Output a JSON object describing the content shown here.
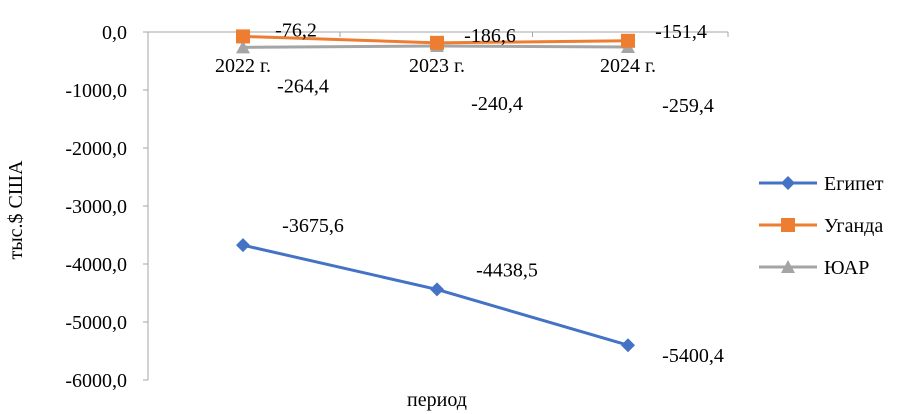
{
  "chart_data": {
    "type": "line",
    "title": "",
    "xlabel": "период",
    "ylabel": "тыс.$ США",
    "categories": [
      "2022 г.",
      "2023 г.",
      "2024 г."
    ],
    "ylim": [
      -6000,
      0
    ],
    "yticks": [
      0,
      -1000,
      -2000,
      -3000,
      -4000,
      -5000,
      -6000
    ],
    "ytick_labels": [
      "0,0",
      "-1000,0",
      "-2000,0",
      "-3000,0",
      "-4000,0",
      "-5000,0",
      "-6000,0"
    ],
    "grid": false,
    "legend_position": "right",
    "series": [
      {
        "name": "Египет",
        "values": [
          -3675.6,
          -4438.5,
          -5400.4
        ],
        "labels": [
          "-3675,6",
          "-4438,5",
          "-5400,4"
        ],
        "color": "#4472C4",
        "marker": "diamond"
      },
      {
        "name": "Уганда",
        "values": [
          -76.2,
          -186.6,
          -151.4
        ],
        "labels": [
          "-76,2",
          "-186,6",
          "-151,4"
        ],
        "color": "#ED7D31",
        "marker": "square"
      },
      {
        "name": "ЮАР",
        "values": [
          -264.4,
          -240.4,
          -259.4
        ],
        "labels": [
          "-264,4",
          "-240,4",
          "-259,4"
        ],
        "color": "#A5A5A5",
        "marker": "triangle"
      }
    ]
  }
}
